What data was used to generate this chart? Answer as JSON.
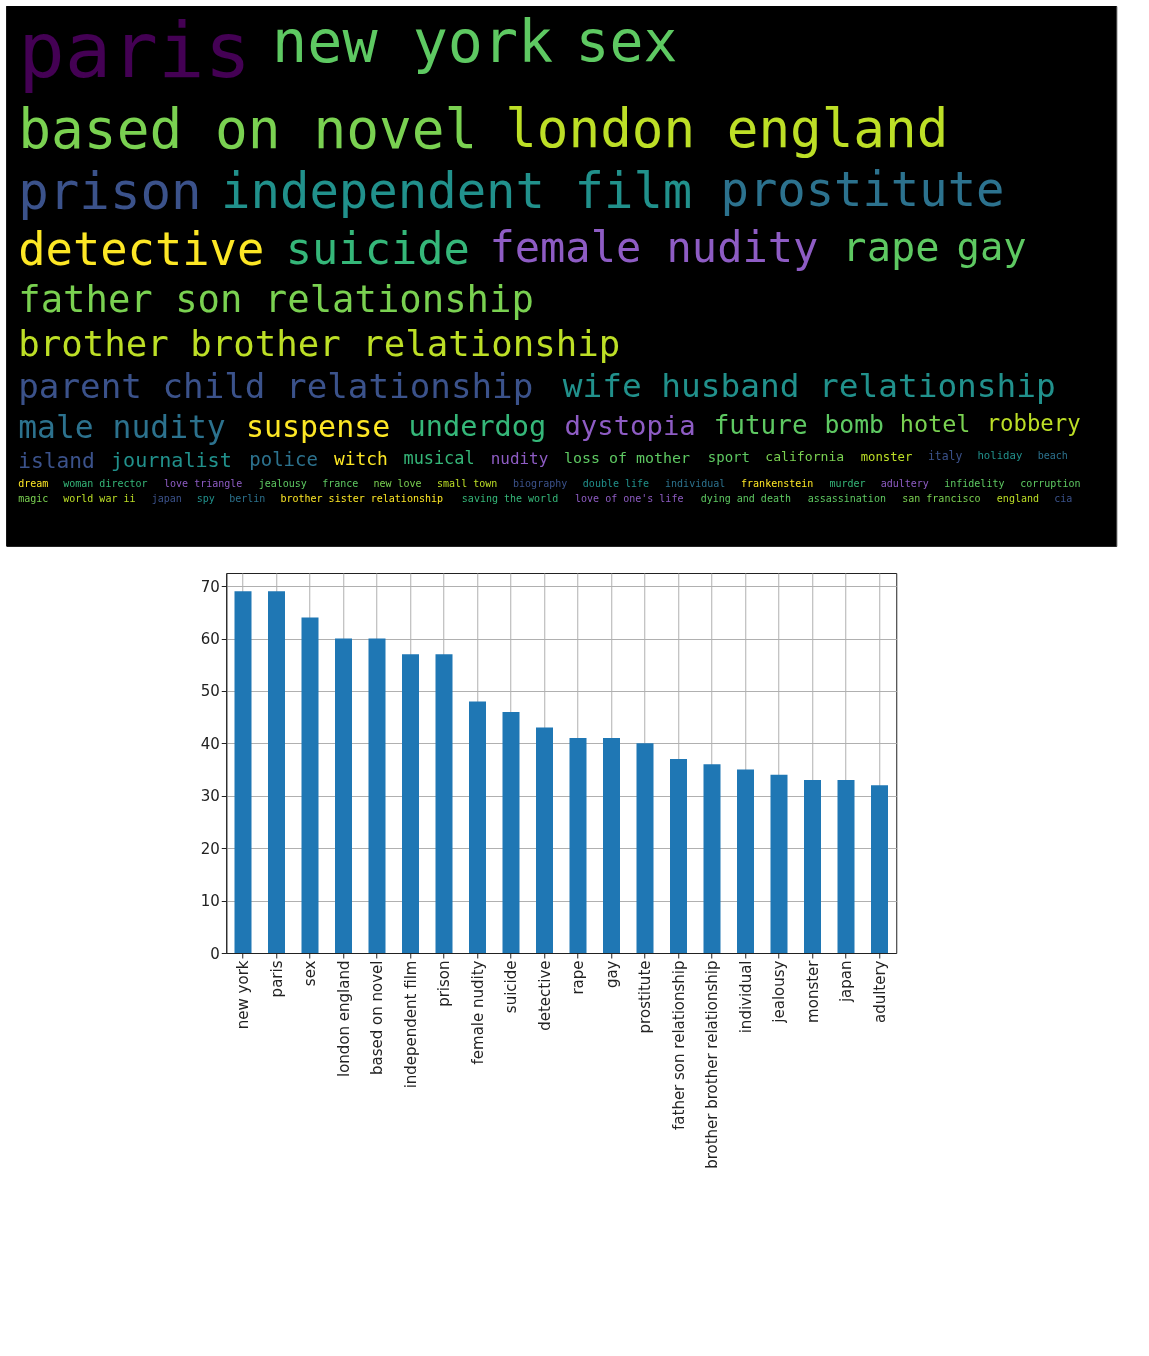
{
  "chart_data": [
    {
      "type": "other",
      "annotations": [
        "paris",
        "new york",
        "sex",
        "based on novel",
        "london england",
        "prison",
        "independent film",
        "prostitute",
        "detective",
        "suicide",
        "female nudity",
        "rape",
        "gay",
        "father son relationship",
        "brother brother relationship",
        "parent child relationship",
        "wife husband relationship",
        "male nudity",
        "suspense",
        "underdog",
        "dystopia",
        "future",
        "bomb",
        "hotel",
        "robbery",
        "island",
        "journalist",
        "police",
        "witch",
        "musical",
        "nudity",
        "loss of mother",
        "sport",
        "california",
        "monster",
        "italy",
        "holiday",
        "beach",
        "dream",
        "woman director",
        "love triangle",
        "jealousy",
        "france",
        "new love",
        "small town",
        "biography",
        "double life",
        "individual",
        "frankenstein",
        "murder",
        "adultery",
        "infidelity",
        "corruption",
        "magic",
        "world war ii",
        "japan",
        "spy",
        "berlin",
        "brother sister relationship",
        "saving the world",
        "love of one's life",
        "dying and death",
        "assassination",
        "san francisco",
        "england",
        "cia"
      ]
    },
    {
      "type": "bar",
      "categories": [
        "new york",
        "paris",
        "sex",
        "london england",
        "based on novel",
        "independent film",
        "prison",
        "female nudity",
        "suicide",
        "detective",
        "rape",
        "gay",
        "prostitute",
        "father son relationship",
        "brother brother relationship",
        "individual",
        "jealousy",
        "monster",
        "japan",
        "adultery"
      ],
      "values": [
        69,
        69,
        64,
        60,
        60,
        57,
        57,
        48,
        46,
        43,
        41,
        41,
        40,
        37,
        36,
        35,
        34,
        33,
        33,
        32
      ],
      "color": "#1f77b4",
      "ylim": [
        0,
        72.5
      ],
      "yticks": [
        0,
        10,
        20,
        30,
        40,
        50,
        60,
        70
      ],
      "grid": true
    }
  ]
}
